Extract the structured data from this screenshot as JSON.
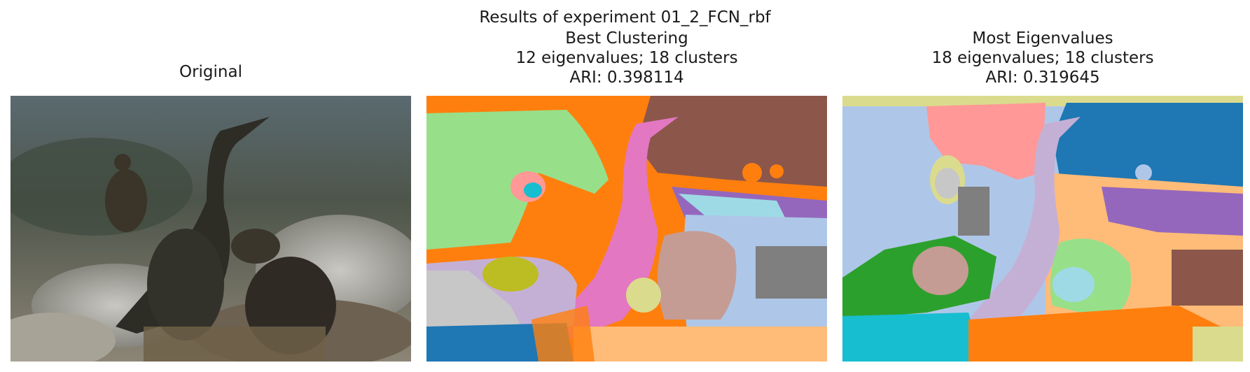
{
  "figure": {
    "suptitle": "Results of experiment 01_2_FCN_rbf"
  },
  "panels": [
    {
      "title": [
        "Original"
      ],
      "content": "photo of cormorants on rocks"
    },
    {
      "title": [
        "Best Clustering",
        "12 eigenvalues; 18 clusters",
        "ARI: 0.398114"
      ]
    },
    {
      "title": [
        "Most Eigenvalues",
        "18 eigenvalues; 18 clusters",
        "ARI: 0.319645"
      ]
    }
  ],
  "palette": {
    "orange": "#ff7f0e",
    "light_green": "#98df8a",
    "brown": "#8c564b",
    "pink": "#e377c2",
    "light_purple": "#c5b0d5",
    "light_blue": "#aec7e8",
    "purple": "#9467bd",
    "olive": "#bcbd22",
    "light_olive": "#dbdb8d",
    "salmon": "#ff9896",
    "cyan": "#17becf",
    "blue": "#1f77b4",
    "gray": "#7f7f7f",
    "light_gray": "#c7c7c7",
    "tan": "#c49c94",
    "peach": "#ffbb78",
    "green": "#2ca02c",
    "light_cyan": "#9edae5"
  }
}
